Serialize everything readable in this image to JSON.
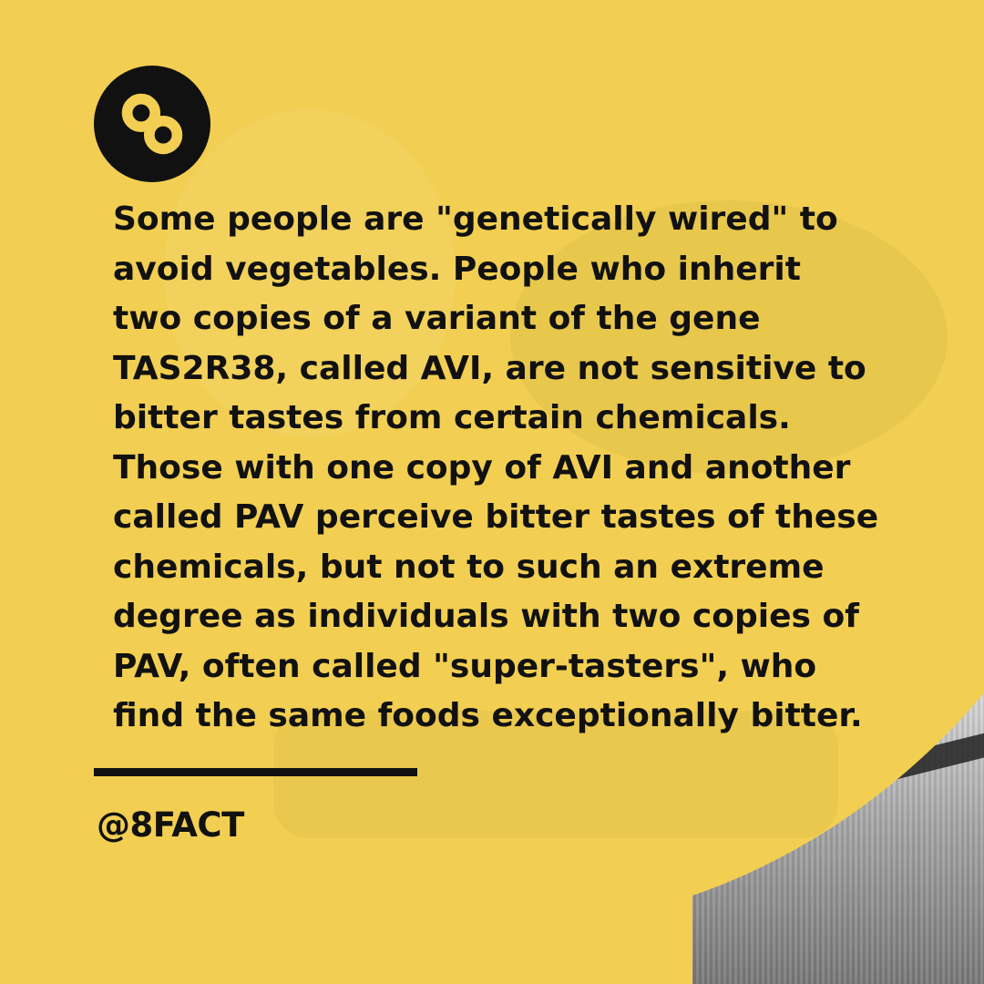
{
  "brand": {
    "logo_icon": "infinity-eight-icon",
    "accent_color": "#f2cf52",
    "text_color": "#111111"
  },
  "fact": {
    "lines": [
      "Some people are \"genetically wired\" to",
      "avoid vegetables. People who inherit",
      "two copies of a variant of the gene",
      "TAS2R38, called AVI, are not sensitive to",
      "bitter tastes from certain chemicals.",
      "Those with one copy of AVI and another",
      "called PAV perceive bitter tastes of these",
      "chemicals, but not to such an extreme",
      "degree as individuals with two copies of",
      "PAV, often called \"super-tasters\", who",
      "find the same foods exceptionally bitter."
    ]
  },
  "footer": {
    "handle": "@8FACT"
  }
}
